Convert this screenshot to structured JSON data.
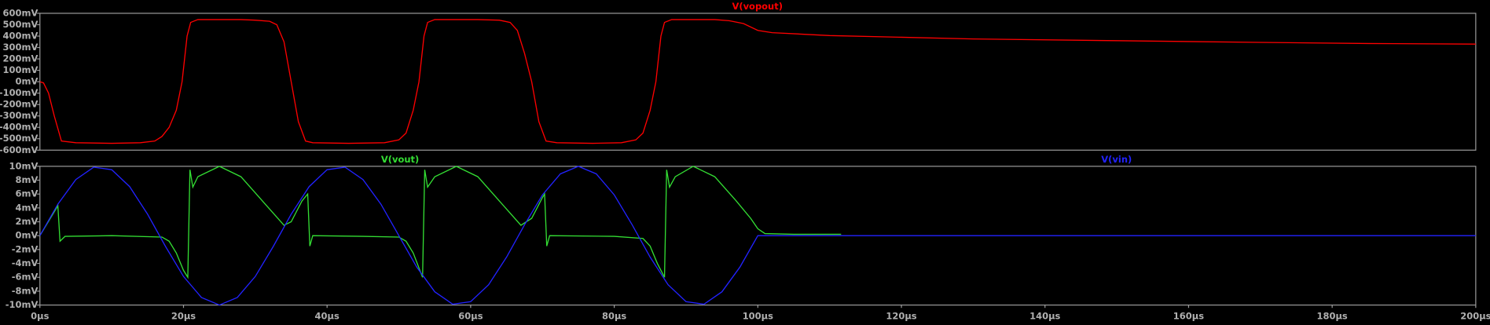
{
  "chart_data": [
    {
      "type": "line",
      "series": [
        {
          "name": "V(vopout)",
          "color": "#ff0000",
          "x": [
            0,
            0.5,
            1.2,
            2,
            3,
            5,
            10,
            14,
            16,
            17,
            18,
            19,
            19.8,
            20.5,
            21,
            22,
            28,
            30,
            32,
            33,
            34,
            35,
            36,
            37,
            38,
            43,
            48,
            50,
            51,
            52,
            52.8,
            53.5,
            54,
            55,
            61,
            64,
            65.5,
            66.5,
            67.5,
            68.5,
            69.5,
            70.5,
            72,
            77,
            81,
            83,
            84,
            85,
            85.8,
            86.5,
            87,
            88,
            94,
            96,
            98,
            100,
            102,
            110,
            120,
            130,
            150,
            170,
            185,
            200
          ],
          "values": [
            0,
            -10,
            -100,
            -300,
            -520,
            -535,
            -540,
            -535,
            -520,
            -480,
            -400,
            -250,
            0,
            400,
            520,
            545,
            545,
            540,
            530,
            500,
            350,
            0,
            -350,
            -520,
            -535,
            -540,
            -535,
            -510,
            -450,
            -250,
            0,
            400,
            520,
            545,
            545,
            540,
            520,
            450,
            250,
            0,
            -350,
            -520,
            -535,
            -540,
            -535,
            -510,
            -450,
            -250,
            0,
            400,
            520,
            545,
            545,
            535,
            510,
            450,
            430,
            405,
            390,
            375,
            360,
            345,
            335,
            330
          ]
        }
      ],
      "xlim": [
        0,
        200
      ],
      "ylim": [
        -600,
        600
      ],
      "yticks": [
        {
          "value": 600,
          "label": "600mV"
        },
        {
          "value": 500,
          "label": "500mV"
        },
        {
          "value": 400,
          "label": "400mV"
        },
        {
          "value": 300,
          "label": "300mV"
        },
        {
          "value": 200,
          "label": "200mV"
        },
        {
          "value": 100,
          "label": "100mV"
        },
        {
          "value": 0,
          "label": "0mV"
        },
        {
          "value": -100,
          "label": "-100mV"
        },
        {
          "value": -200,
          "label": "-200mV"
        },
        {
          "value": -300,
          "label": "-300mV"
        },
        {
          "value": -400,
          "label": "-400mV"
        },
        {
          "value": -500,
          "label": "-500mV"
        },
        {
          "value": -600,
          "label": "-600mV"
        }
      ]
    },
    {
      "type": "line",
      "series": [
        {
          "name": "V(vout)",
          "color": "#33dd33",
          "x": [
            0,
            2.5,
            2.8,
            3.5,
            10,
            17,
            18,
            19,
            20,
            20.6,
            20.9,
            21.3,
            22,
            25,
            28,
            31,
            34,
            35,
            36.5,
            37.3,
            37.6,
            38,
            45,
            50,
            51,
            52,
            53.3,
            53.6,
            54,
            55,
            58,
            61,
            64,
            67,
            68.5,
            70,
            70.3,
            70.6,
            71,
            80,
            84,
            85,
            86,
            87,
            87.3,
            87.7,
            88.5,
            91,
            94,
            97,
            99,
            100,
            101,
            105,
            111.6
          ],
          "values": [
            0,
            4.3,
            -0.8,
            -0.1,
            0,
            -0.2,
            -0.8,
            -2.5,
            -5,
            -6,
            9.5,
            7,
            8.5,
            10,
            8.5,
            5,
            1.5,
            2,
            5,
            6,
            -1.5,
            0,
            -0.1,
            -0.2,
            -0.8,
            -2.5,
            -6,
            9.5,
            7,
            8.5,
            10,
            8.5,
            5,
            1.5,
            2.5,
            5.5,
            6,
            -1.5,
            0,
            -0.1,
            -0.4,
            -1.5,
            -4,
            -6,
            9.5,
            7,
            8.5,
            10,
            8.5,
            5,
            2.5,
            1,
            0.3,
            0.2,
            0.2
          ]
        },
        {
          "name": "V(vin)",
          "color": "#2222ff",
          "x": [
            0,
            2.5,
            5,
            7.5,
            10,
            12.5,
            15,
            17.5,
            20,
            22.5,
            25,
            27.5,
            30,
            32.5,
            35,
            37.5,
            40,
            42.5,
            45,
            47.5,
            50,
            52.5,
            55,
            57.5,
            60,
            62.5,
            65,
            67.5,
            70,
            72.5,
            75,
            77.5,
            80,
            82.5,
            85,
            87.5,
            90,
            92.5,
            95,
            97.5,
            100,
            200
          ],
          "values": [
            0,
            4.54,
            8.09,
            9.88,
            9.51,
            7.07,
            3.09,
            -1.56,
            -5.88,
            -8.91,
            -10,
            -8.91,
            -5.88,
            -1.56,
            3.09,
            7.07,
            9.51,
            9.88,
            8.09,
            4.54,
            0,
            -4.54,
            -8.09,
            -9.88,
            -9.51,
            -7.07,
            -3.09,
            1.56,
            5.88,
            8.91,
            10,
            8.91,
            5.88,
            1.56,
            -3.09,
            -7.07,
            -9.51,
            -9.88,
            -8.09,
            -4.54,
            0,
            0
          ]
        }
      ],
      "xlim": [
        0,
        200
      ],
      "xticks": [
        {
          "value": 0,
          "label": "0μs"
        },
        {
          "value": 20,
          "label": "20μs"
        },
        {
          "value": 40,
          "label": "40μs"
        },
        {
          "value": 60,
          "label": "60μs"
        },
        {
          "value": 80,
          "label": "80μs"
        },
        {
          "value": 100,
          "label": "100μs"
        },
        {
          "value": 120,
          "label": "120μs"
        },
        {
          "value": 140,
          "label": "140μs"
        },
        {
          "value": 160,
          "label": "160μs"
        },
        {
          "value": 180,
          "label": "180μs"
        },
        {
          "value": 200,
          "label": "200μs"
        }
      ],
      "ylim": [
        -10,
        10
      ],
      "yticks": [
        {
          "value": 10,
          "label": "10mV"
        },
        {
          "value": 8,
          "label": "8mV"
        },
        {
          "value": 6,
          "label": "6mV"
        },
        {
          "value": 4,
          "label": "4mV"
        },
        {
          "value": 2,
          "label": "2mV"
        },
        {
          "value": 0,
          "label": "0mV"
        },
        {
          "value": -2,
          "label": "-2mV"
        },
        {
          "value": -4,
          "label": "-4mV"
        },
        {
          "value": -6,
          "label": "-6mV"
        },
        {
          "value": -8,
          "label": "-8mV"
        },
        {
          "value": -10,
          "label": "-10mV"
        }
      ]
    }
  ]
}
